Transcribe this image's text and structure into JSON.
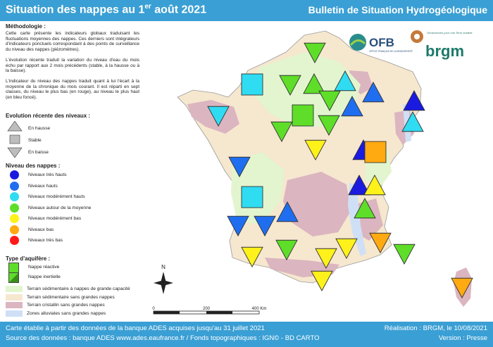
{
  "header": {
    "title_main": "Situation des nappes au 1",
    "title_sup": "er",
    "title_end": " août 2021",
    "bulletin": "Bulletin de Situation Hydrogéologique"
  },
  "methodology": {
    "heading": "Méthodologie :",
    "p1": "Cette carte présente les indicateurs globaux traduisant les fluctuations moyennes des nappes. Ces derniers sont intégrateurs d'indicateurs ponctuels correspondant à des points de surveillance du niveau des nappes (piézomètres).",
    "p2": "L'évolution récente traduit la variation du niveau d'eau du mois échu par rapport aux 2 mois précédents (stable, à la hausse ou à la baisse).",
    "p3": "L'indicateur du niveau des nappes traduit quant à lui l'écart à la moyenne de la chronique du mois courant. Il est réparti en sept classes, du niveau le plus bas (en rouge), au niveau le plus haut (en bleu foncé)."
  },
  "evolution": {
    "heading": "Evolution récente des niveaux :",
    "up": "En hausse",
    "stable": "Stable",
    "down": "En baisse"
  },
  "levels": {
    "heading": "Niveau des nappes :",
    "items": [
      {
        "label": "Niveaux très hauts",
        "color": "#1a1ae0"
      },
      {
        "label": "Niveaux hauts",
        "color": "#1f6ef0"
      },
      {
        "label": "Niveaux modérément hauts",
        "color": "#2fdcf2"
      },
      {
        "label": "Niveaux autour de la moyenne",
        "color": "#5ede28"
      },
      {
        "label": "Niveaux modérément bas",
        "color": "#fff21a"
      },
      {
        "label": "Niveaux bas",
        "color": "#ffaa10"
      },
      {
        "label": "Niveaux très bas",
        "color": "#ff1a1a"
      }
    ]
  },
  "aquifer": {
    "heading": "Type d'aquifère :",
    "reactive": "Nappe réactive",
    "inertial": "Nappe inertielle"
  },
  "terrain": {
    "items": [
      {
        "label": "Terrain sédimentaire à nappes de grande capacité",
        "color": "#e2f5cf"
      },
      {
        "label": "Terrain sédimentaire sans grandes nappes",
        "color": "#f6e7cf"
      },
      {
        "label": "Terrain cristallin sans grandes nappes",
        "color": "#dbb5bf"
      },
      {
        "label": "Zones alluviales sans grandes nappes",
        "color": "#cfe0f6"
      }
    ]
  },
  "map": {
    "north": "N",
    "scale_labels": [
      "0",
      "200",
      "400 Km"
    ],
    "sea_color": "#ffffff",
    "land_color": "#f6e7cf"
  },
  "logos": {
    "ofb": "OFB",
    "ofb_sub": "OFFICE FRANÇAIS DE LA BIODIVERSITÉ",
    "brgm": "brgm",
    "brgm_tag": "Géosciences pour une Terre durable"
  },
  "footer": {
    "line1": "Carte établie à partir des données de la banque ADES acquises jusqu'au 31 juillet 2021",
    "line2": "Source des données : banque ADES www.ades.eaufrance.fr / Fonds topographiques : IGN© - BD CARTO",
    "realisation": "Réalisation : BRGM, le 10/08/2021",
    "version": "Version : Presse"
  },
  "markers": [
    {
      "shape": "down",
      "color": "#5ede28"
    },
    {
      "shape": "square",
      "color": "#2fdcf2"
    },
    {
      "shape": "down",
      "color": "#5ede28"
    },
    {
      "shape": "up",
      "color": "#5ede28"
    },
    {
      "shape": "up",
      "color": "#2fdcf2"
    },
    {
      "shape": "down",
      "color": "#5ede28"
    },
    {
      "shape": "up",
      "color": "#1f6ef0"
    },
    {
      "shape": "up",
      "color": "#1a1ae0"
    },
    {
      "shape": "down",
      "color": "#2fdcf2"
    },
    {
      "shape": "up",
      "color": "#1f6ef0"
    },
    {
      "shape": "square",
      "color": "#5ede28"
    },
    {
      "shape": "down",
      "color": "#5ede28"
    },
    {
      "shape": "up",
      "color": "#2fdcf2"
    },
    {
      "shape": "down",
      "color": "#5ede28"
    },
    {
      "shape": "down",
      "color": "#fff21a"
    },
    {
      "shape": "up",
      "color": "#1a1ae0"
    },
    {
      "shape": "square",
      "color": "#ffaa10"
    },
    {
      "shape": "down",
      "color": "#1f6ef0"
    },
    {
      "shape": "up",
      "color": "#1a1ae0"
    },
    {
      "shape": "up",
      "color": "#fff21a"
    },
    {
      "shape": "square",
      "color": "#2fdcf2"
    },
    {
      "shape": "up",
      "color": "#5ede28"
    },
    {
      "shape": "up",
      "color": "#1f6ef0"
    },
    {
      "shape": "down",
      "color": "#1f6ef0"
    },
    {
      "shape": "down",
      "color": "#1f6ef0"
    },
    {
      "shape": "down",
      "color": "#ffaa10"
    },
    {
      "shape": "down",
      "color": "#fff21a"
    },
    {
      "shape": "down",
      "color": "#5ede28"
    },
    {
      "shape": "down",
      "color": "#fff21a"
    },
    {
      "shape": "down",
      "color": "#fff21a"
    },
    {
      "shape": "down",
      "color": "#5ede28"
    },
    {
      "shape": "down",
      "color": "#fff21a"
    },
    {
      "shape": "down",
      "color": "#ffaa10"
    }
  ]
}
